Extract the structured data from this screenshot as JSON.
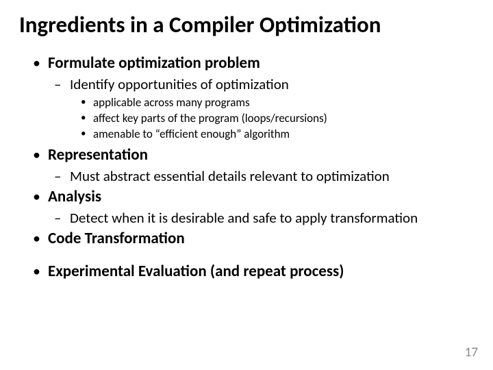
{
  "title": "Ingredients in a Compiler Optimization",
  "page_number": "17",
  "bullets": {
    "b0": {
      "text": "Formulate optimization problem"
    },
    "b0_0": {
      "text": "Identify opportunities of optimization"
    },
    "b0_0_0": {
      "text": "applicable across many programs"
    },
    "b0_0_1": {
      "text": "affect key parts of the program (loops/recursions)"
    },
    "b0_0_2": {
      "text": "amenable to “efficient enough” algorithm"
    },
    "b1": {
      "text": "Representation"
    },
    "b1_0": {
      "text": "Must abstract essential details relevant to optimization"
    },
    "b2": {
      "text": "Analysis"
    },
    "b2_0": {
      "text": "Detect when it is desirable and safe to apply transformation"
    },
    "b3": {
      "text": "Code Transformation"
    },
    "b4": {
      "text": "Experimental Evaluation"
    },
    "b4_suffix": {
      "text": " (and repeat process)"
    }
  }
}
